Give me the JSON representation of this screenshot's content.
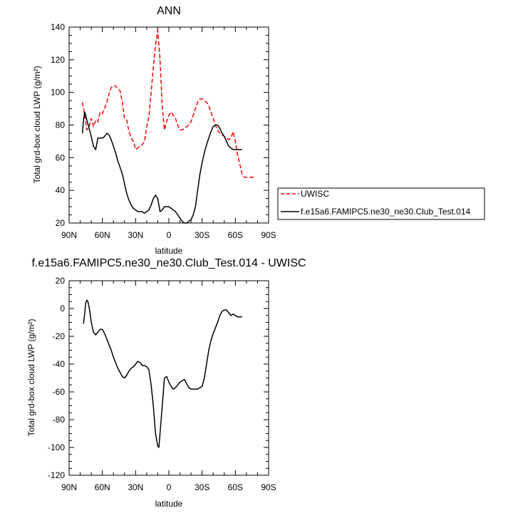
{
  "chart_data": [
    {
      "type": "line",
      "title": "ANN",
      "xlabel": "",
      "ylabel": "Total grd-box cloud LWP (g/m²)",
      "xlim": [
        90,
        -90
      ],
      "ylim": [
        20,
        140
      ],
      "x_ticks": [
        90,
        60,
        30,
        0,
        -30,
        -60,
        -90
      ],
      "x_tick_labels": [
        "90N",
        "60N",
        "30N",
        "0",
        "30S",
        "60S",
        "90S"
      ],
      "y_ticks": [
        20,
        40,
        60,
        80,
        100,
        120,
        140
      ],
      "y_tick_labels": [
        "20",
        "40",
        "60",
        "80",
        "100",
        "120",
        "140"
      ],
      "grid": false,
      "legend_position": "right",
      "series": [
        {
          "name": "UWISC",
          "color": "#ff0000",
          "dash": "dashed",
          "x": [
            78,
            76,
            74,
            72,
            70,
            68,
            66,
            64,
            62,
            60,
            58,
            56,
            54,
            52,
            50,
            48,
            46,
            44,
            42,
            40,
            38,
            36,
            34,
            32,
            30,
            28,
            26,
            24,
            22,
            20,
            18,
            16,
            14,
            12,
            10,
            8,
            6,
            4,
            2,
            0,
            -2,
            -4,
            -6,
            -8,
            -10,
            -12,
            -14,
            -16,
            -18,
            -20,
            -22,
            -24,
            -26,
            -28,
            -30,
            -32,
            -34,
            -36,
            -38,
            -40,
            -42,
            -44,
            -46,
            -48,
            -50,
            -52,
            -54,
            -56,
            -58,
            -60,
            -62,
            -64,
            -66,
            -68,
            -70,
            -72,
            -74,
            -76,
            -78
          ],
          "y": [
            94,
            86,
            77,
            79,
            84,
            79,
            83,
            82,
            88,
            87,
            90,
            94,
            99,
            103,
            104,
            104,
            102,
            101,
            94,
            84,
            83,
            76,
            72,
            70,
            65,
            66,
            67,
            68,
            70,
            79,
            85,
            100,
            115,
            129,
            138,
            120,
            92,
            77,
            82,
            86,
            88,
            86,
            84,
            80,
            77,
            77,
            78,
            79,
            80,
            82,
            86,
            90,
            94,
            96,
            96,
            95,
            94,
            92,
            88,
            84,
            80,
            77,
            75,
            74,
            73,
            72,
            71,
            72,
            76,
            70,
            62,
            56,
            50,
            48,
            48,
            48,
            48,
            48,
            49
          ],
          "_x_trim": -77
        },
        {
          "name": "f.e15a6.FAMIPC5.ne30_ne30.Club_Test.014",
          "color": "#000000",
          "dash": "solid",
          "x": [
            78,
            77,
            76,
            75,
            74,
            72,
            70,
            68,
            66,
            64,
            62,
            60,
            58,
            56,
            54,
            52,
            50,
            48,
            46,
            44,
            42,
            40,
            38,
            36,
            34,
            32,
            30,
            28,
            26,
            24,
            22,
            20,
            18,
            16,
            14,
            12,
            10,
            8,
            6,
            4,
            2,
            0,
            -2,
            -4,
            -6,
            -8,
            -10,
            -12,
            -14,
            -16,
            -18,
            -20,
            -22,
            -24,
            -26,
            -28,
            -30,
            -32,
            -34,
            -36,
            -38,
            -40,
            -42,
            -44,
            -46,
            -48,
            -50,
            -52,
            -54,
            -56,
            -58,
            -60,
            -62,
            -64,
            -66
          ],
          "y": [
            75,
            83,
            88,
            86,
            83,
            78,
            73,
            67,
            65,
            72,
            72,
            72,
            73,
            75,
            74,
            71,
            67,
            63,
            58,
            54,
            50,
            44,
            38,
            34,
            31,
            29,
            28,
            27,
            27,
            27,
            26,
            27,
            28,
            31,
            35,
            37,
            35,
            27,
            28,
            30,
            30,
            30,
            29,
            28,
            27,
            25,
            23,
            21,
            20,
            20,
            21,
            22,
            25,
            30,
            40,
            50,
            57,
            63,
            68,
            72,
            76,
            79,
            80,
            80,
            78,
            75,
            73,
            70,
            67,
            66,
            65,
            65,
            65,
            65,
            65
          ]
        }
      ]
    },
    {
      "type": "line",
      "title": "f.e15a6.FAMIPC5.ne30_ne30.Club_Test.014 - UWISC",
      "xlabel": "latitude",
      "ylabel": "Total grd-box cloud LWP (g/m²)",
      "xlim": [
        90,
        -90
      ],
      "ylim": [
        -120,
        20
      ],
      "x_ticks": [
        90,
        60,
        30,
        0,
        -30,
        -60,
        -90
      ],
      "x_tick_labels": [
        "90N",
        "60N",
        "30N",
        "0",
        "30S",
        "60S",
        "90S"
      ],
      "y_ticks": [
        -120,
        -100,
        -80,
        -60,
        -40,
        -20,
        0,
        20
      ],
      "y_tick_labels": [
        "-120",
        "-100",
        "-80",
        "-60",
        "-40",
        "-20",
        "0",
        "20"
      ],
      "grid": false,
      "series": [
        {
          "name": "",
          "color": "#000000",
          "dash": "solid",
          "x": [
            77,
            76,
            75,
            74,
            73,
            72,
            71,
            70,
            68,
            66,
            64,
            62,
            60,
            58,
            56,
            54,
            52,
            50,
            48,
            46,
            44,
            42,
            40,
            38,
            36,
            34,
            32,
            30,
            28,
            26,
            24,
            22,
            20,
            18,
            16,
            14,
            12,
            10,
            9,
            8,
            6,
            4,
            2,
            0,
            -2,
            -4,
            -6,
            -8,
            -10,
            -12,
            -14,
            -16,
            -18,
            -20,
            -22,
            -24,
            -26,
            -28,
            -30,
            -32,
            -34,
            -36,
            -38,
            -40,
            -42,
            -44,
            -46,
            -48,
            -50,
            -52,
            -54,
            -56,
            -58,
            -60,
            -62,
            -64,
            -66
          ],
          "y": [
            -11,
            -4,
            4,
            6,
            5,
            1,
            -4,
            -10,
            -17,
            -19,
            -17,
            -15,
            -15,
            -18,
            -22,
            -26,
            -30,
            -35,
            -39,
            -43,
            -46,
            -49,
            -50,
            -48,
            -45,
            -43,
            -42,
            -40,
            -38,
            -39,
            -41,
            -41,
            -42,
            -44,
            -55,
            -70,
            -90,
            -99,
            -100,
            -90,
            -70,
            -50,
            -49,
            -53,
            -56,
            -58,
            -57,
            -55,
            -53,
            -52,
            -51,
            -54,
            -57,
            -58,
            -58,
            -58,
            -58,
            -57,
            -56,
            -50,
            -40,
            -30,
            -23,
            -18,
            -14,
            -10,
            -5,
            -2,
            -1,
            -1,
            -3,
            -5,
            -4,
            -5,
            -6,
            -6,
            -6
          ],
          "_x_trim": -66
        }
      ]
    }
  ]
}
